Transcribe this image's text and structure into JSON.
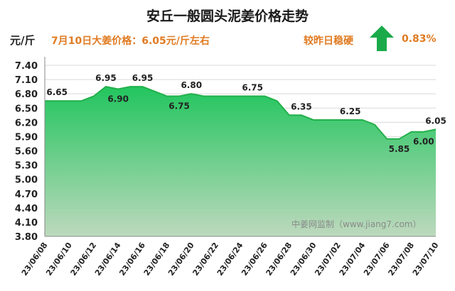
{
  "title": "安丘一般圆头泥姜价格走势",
  "unit": "元/斤",
  "price_info": "7月10日大姜价格：6.05元/斤左右",
  "compare_text": "较昨日稳硬",
  "change_pct": "0.83%",
  "change_icon": "up-arrow-icon",
  "colors": {
    "accent": "#e07b22",
    "arrow": "#1aaa4a",
    "area_top": "#22c55e",
    "area_bottom": "#bdd9bd",
    "line": "#22b04b"
  },
  "watermark": "中姜网监制（www.jiang7.com）",
  "chart_data": {
    "type": "area",
    "title": "安丘一般圆头泥姜价格走势",
    "ylabel": "元/斤",
    "ylim": [
      3.8,
      7.4
    ],
    "yticks": [
      "7.40",
      "7.10",
      "6.80",
      "6.50",
      "6.20",
      "5.90",
      "5.60",
      "5.30",
      "5.00",
      "4.70",
      "4.40",
      "4.10",
      "3.80"
    ],
    "grid": true,
    "x": [
      "23/06/08",
      "23/06/09",
      "23/06/10",
      "23/06/11",
      "23/06/12",
      "23/06/13",
      "23/06/14",
      "23/06/15",
      "23/06/16",
      "23/06/17",
      "23/06/18",
      "23/06/19",
      "23/06/20",
      "23/06/21",
      "23/06/22",
      "23/06/23",
      "23/06/24",
      "23/06/25",
      "23/06/26",
      "23/06/27",
      "23/06/28",
      "23/06/29",
      "23/06/30",
      "23/07/01",
      "23/07/02",
      "23/07/03",
      "23/07/04",
      "23/07/05",
      "23/07/06",
      "23/07/07",
      "23/07/08",
      "23/07/09",
      "23/07/10"
    ],
    "values": [
      6.65,
      6.65,
      6.65,
      6.65,
      6.75,
      6.95,
      6.9,
      6.95,
      6.95,
      6.85,
      6.75,
      6.75,
      6.8,
      6.75,
      6.75,
      6.75,
      6.75,
      6.75,
      6.75,
      6.65,
      6.35,
      6.35,
      6.25,
      6.25,
      6.25,
      6.25,
      6.25,
      6.15,
      5.85,
      5.85,
      6.0,
      6.0,
      6.05
    ],
    "xtick_labels": [
      "23/06/08",
      "23/06/10",
      "23/06/12",
      "23/06/14",
      "23/06/16",
      "23/06/18",
      "23/06/20",
      "23/06/22",
      "23/06/24",
      "23/06/26",
      "23/06/28",
      "23/06/30",
      "23/07/02",
      "23/07/04",
      "23/07/06",
      "23/07/08",
      "23/07/10"
    ],
    "data_labels": [
      {
        "index": 1,
        "text": "6.65",
        "pos": "above"
      },
      {
        "index": 5,
        "text": "6.95",
        "pos": "above"
      },
      {
        "index": 6,
        "text": "6.90",
        "pos": "below"
      },
      {
        "index": 8,
        "text": "6.95",
        "pos": "above"
      },
      {
        "index": 11,
        "text": "6.75",
        "pos": "below"
      },
      {
        "index": 12,
        "text": "6.80",
        "pos": "above"
      },
      {
        "index": 17,
        "text": "6.75",
        "pos": "above"
      },
      {
        "index": 21,
        "text": "6.35",
        "pos": "above"
      },
      {
        "index": 25,
        "text": "6.25",
        "pos": "above"
      },
      {
        "index": 29,
        "text": "5.85",
        "pos": "below"
      },
      {
        "index": 31,
        "text": "6.00",
        "pos": "below"
      },
      {
        "index": 32,
        "text": "6.05",
        "pos": "above"
      }
    ]
  }
}
